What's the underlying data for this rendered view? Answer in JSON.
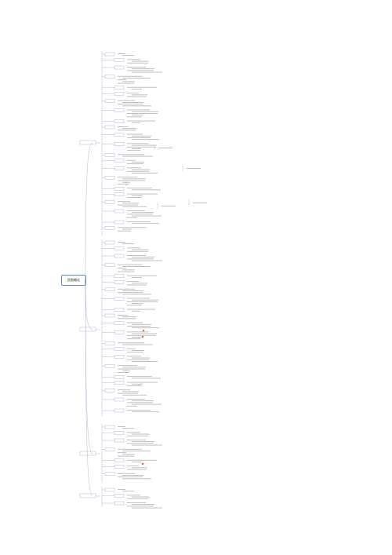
{
  "root": {
    "label": "民航概论"
  }
}
